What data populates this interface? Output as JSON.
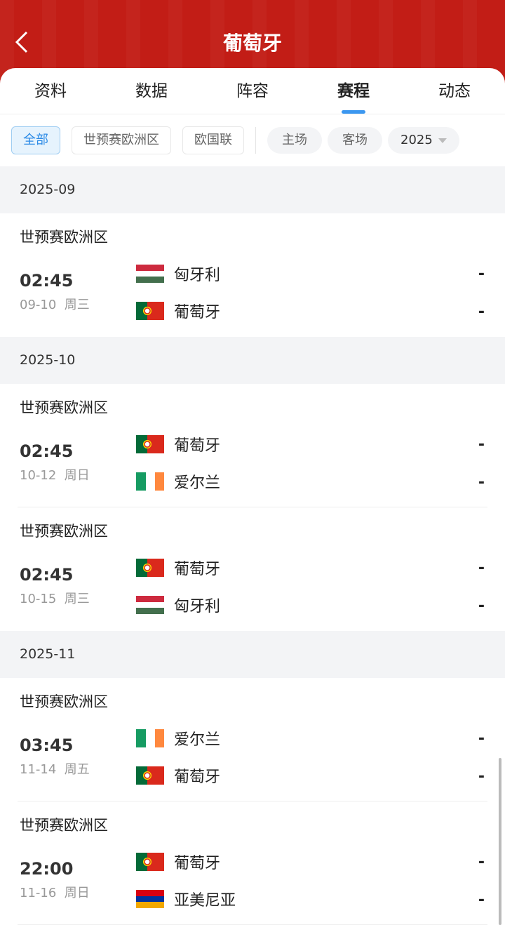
{
  "header": {
    "title": "葡萄牙",
    "back_icon": "chevron-left-icon"
  },
  "tabs": [
    {
      "label": "资料"
    },
    {
      "label": "数据"
    },
    {
      "label": "阵容"
    },
    {
      "label": "赛程",
      "active": true
    },
    {
      "label": "动态"
    }
  ],
  "filters": {
    "competitions": [
      "全部",
      "世预赛欧洲区",
      "欧国联"
    ],
    "selected": "全部",
    "venue": [
      "主场",
      "客场"
    ],
    "year": "2025"
  },
  "colors": {
    "brand": "#c21d16",
    "accent": "#3b97f0"
  },
  "months": [
    {
      "label": "2025-09",
      "matches": [
        {
          "league": "世预赛欧洲区",
          "time": "02:45",
          "date": "09-10",
          "weekday": "周三",
          "home": {
            "name": "匈牙利",
            "flag": "hungary"
          },
          "away": {
            "name": "葡萄牙",
            "flag": "portugal"
          },
          "home_score": "-",
          "away_score": "-"
        }
      ]
    },
    {
      "label": "2025-10",
      "matches": [
        {
          "league": "世预赛欧洲区",
          "time": "02:45",
          "date": "10-12",
          "weekday": "周日",
          "home": {
            "name": "葡萄牙",
            "flag": "portugal"
          },
          "away": {
            "name": "爱尔兰",
            "flag": "ireland"
          },
          "home_score": "-",
          "away_score": "-"
        },
        {
          "league": "世预赛欧洲区",
          "time": "02:45",
          "date": "10-15",
          "weekday": "周三",
          "home": {
            "name": "葡萄牙",
            "flag": "portugal"
          },
          "away": {
            "name": "匈牙利",
            "flag": "hungary"
          },
          "home_score": "-",
          "away_score": "-"
        }
      ]
    },
    {
      "label": "2025-11",
      "matches": [
        {
          "league": "世预赛欧洲区",
          "time": "03:45",
          "date": "11-14",
          "weekday": "周五",
          "home": {
            "name": "爱尔兰",
            "flag": "ireland"
          },
          "away": {
            "name": "葡萄牙",
            "flag": "portugal"
          },
          "home_score": "-",
          "away_score": "-"
        },
        {
          "league": "世预赛欧洲区",
          "time": "22:00",
          "date": "11-16",
          "weekday": "周日",
          "home": {
            "name": "葡萄牙",
            "flag": "portugal"
          },
          "away": {
            "name": "亚美尼亚",
            "flag": "armenia"
          },
          "home_score": "-",
          "away_score": "-"
        }
      ]
    }
  ]
}
